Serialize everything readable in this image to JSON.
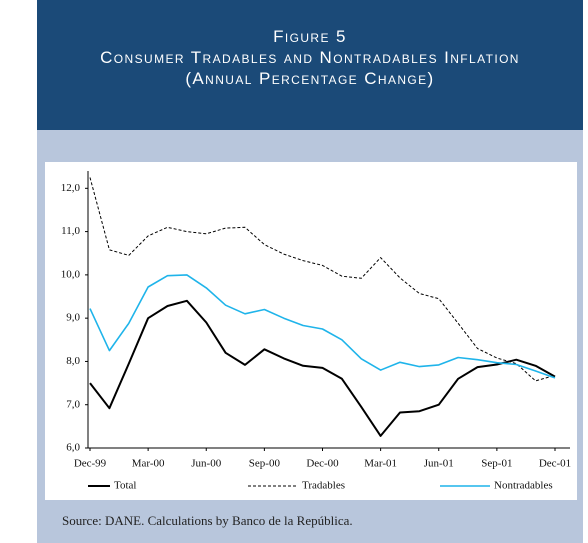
{
  "header": {
    "figure_label": "Figure 5",
    "title": "Consumer Tradables and Nontradables Inflation",
    "subtitle": "(Annual Percentage Change)"
  },
  "chart_data": {
    "type": "line",
    "categories": [
      "Dec-99",
      null,
      null,
      "Mar-00",
      null,
      null,
      "Jun-00",
      null,
      null,
      "Sep-00",
      null,
      null,
      "Dec-00",
      null,
      null,
      "Mar-01",
      null,
      null,
      "Jun-01",
      null,
      null,
      "Sep-01",
      null,
      null,
      "Dec-01"
    ],
    "series": [
      {
        "name": "Total",
        "color": "#000000",
        "style": "solid",
        "values": [
          7.5,
          6.92,
          7.95,
          9.0,
          9.28,
          9.4,
          8.9,
          8.2,
          7.92,
          8.28,
          8.07,
          7.9,
          7.85,
          7.6,
          6.95,
          6.28,
          6.82,
          6.85,
          7.0,
          7.6,
          7.87,
          7.93,
          8.04,
          7.9,
          7.65
        ]
      },
      {
        "name": "Tradables",
        "color": "#000000",
        "style": "dashed",
        "values": [
          12.25,
          10.58,
          10.45,
          10.9,
          11.1,
          11.0,
          10.95,
          11.08,
          11.1,
          10.7,
          10.48,
          10.33,
          10.22,
          9.97,
          9.92,
          10.4,
          9.93,
          9.57,
          9.45,
          8.88,
          8.3,
          8.08,
          7.95,
          7.55,
          7.68
        ]
      },
      {
        "name": "Nontradables",
        "color": "#1fb4ea",
        "style": "solid",
        "values": [
          9.22,
          8.25,
          8.88,
          9.72,
          9.98,
          10.0,
          9.7,
          9.3,
          9.1,
          9.2,
          9.0,
          8.83,
          8.75,
          8.5,
          8.06,
          7.8,
          7.98,
          7.88,
          7.92,
          8.09,
          8.04,
          7.97,
          7.93,
          7.78,
          7.62
        ]
      }
    ],
    "ylim": [
      6,
      12.4
    ],
    "yticks": [
      {
        "value": 6,
        "label": "6,0"
      },
      {
        "value": 7,
        "label": "7,0"
      },
      {
        "value": 8,
        "label": "8,0"
      },
      {
        "value": 9,
        "label": "9,0"
      },
      {
        "value": 10,
        "label": "10,0"
      },
      {
        "value": 11,
        "label": "11,0"
      },
      {
        "value": 12,
        "label": "12,0"
      }
    ],
    "legend": "bottom"
  },
  "source": "Source: DANE. Calculations by Banco de la República."
}
